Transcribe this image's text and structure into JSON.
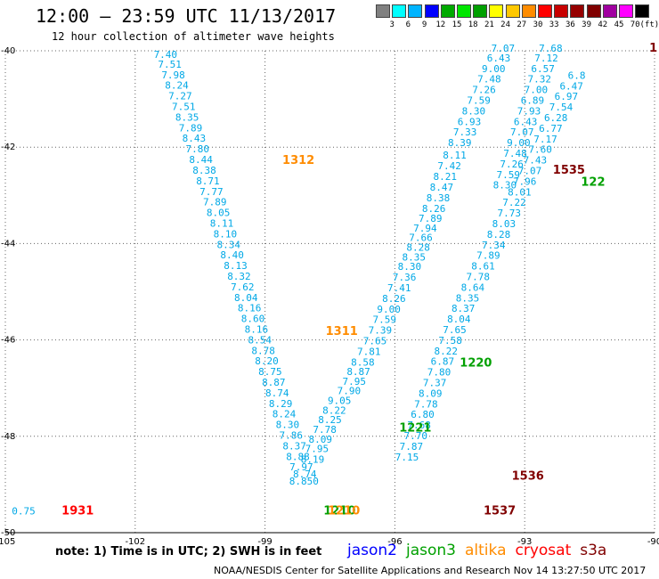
{
  "header": {
    "title": "12:00 – 23:59 UTC 11/13/2017",
    "subtitle": "12 hour collection of altimeter wave heights"
  },
  "legend": {
    "unit": "(ft)",
    "colors": [
      "#808080",
      "#00ffff",
      "#00b4ff",
      "#0000ff",
      "#00aa00",
      "#00e600",
      "#00a000",
      "#ffff00",
      "#ffc800",
      "#ff8c00",
      "#ff0000",
      "#c80000",
      "#960000",
      "#800000",
      "#a000a0",
      "#ff00ff",
      "#000000"
    ],
    "labels": [
      "3",
      "6",
      "9",
      "12",
      "15",
      "18",
      "21",
      "24",
      "27",
      "30",
      "33",
      "36",
      "39",
      "42",
      "45",
      "70"
    ]
  },
  "chart_data": {
    "type": "scatter",
    "xlim": [
      -105,
      -90
    ],
    "ylim": [
      -50,
      -40
    ],
    "x_ticks": [
      "-105",
      "-102",
      "-99",
      "-96",
      "-93",
      "-90"
    ],
    "y_ticks": [
      "-40",
      "-42",
      "-44",
      "-46",
      "-48",
      "-50"
    ],
    "tracks": [
      {
        "points": [
          {
            "lon": -101.3,
            "lat": -40.15,
            "v": "7.40"
          },
          {
            "lon": -101.2,
            "lat": -40.35,
            "v": "7.51"
          },
          {
            "lon": -101.12,
            "lat": -40.57,
            "v": "7.98"
          },
          {
            "lon": -101.04,
            "lat": -40.79,
            "v": "8.24"
          },
          {
            "lon": -100.96,
            "lat": -41.01,
            "v": "7.27"
          },
          {
            "lon": -100.88,
            "lat": -41.23,
            "v": "7.51"
          },
          {
            "lon": -100.8,
            "lat": -41.45,
            "v": "8.35"
          },
          {
            "lon": -100.72,
            "lat": -41.67,
            "v": "7.89"
          },
          {
            "lon": -100.64,
            "lat": -41.89,
            "v": "8.43"
          },
          {
            "lon": -100.56,
            "lat": -42.11,
            "v": "7.80"
          },
          {
            "lon": -100.48,
            "lat": -42.33,
            "v": "8.44"
          },
          {
            "lon": -100.4,
            "lat": -42.55,
            "v": "8.38"
          },
          {
            "lon": -100.32,
            "lat": -42.77,
            "v": "8.71"
          },
          {
            "lon": -100.24,
            "lat": -42.99,
            "v": "7.77"
          },
          {
            "lon": -100.16,
            "lat": -43.21,
            "v": "7.89"
          },
          {
            "lon": -100.08,
            "lat": -43.43,
            "v": "8.05"
          },
          {
            "lon": -100.0,
            "lat": -43.65,
            "v": "8.11"
          },
          {
            "lon": -99.92,
            "lat": -43.87,
            "v": "8.10"
          },
          {
            "lon": -99.84,
            "lat": -44.09,
            "v": "8.34"
          },
          {
            "lon": -99.76,
            "lat": -44.31,
            "v": "8.40"
          },
          {
            "lon": -99.68,
            "lat": -44.53,
            "v": "8.13"
          },
          {
            "lon": -99.6,
            "lat": -44.75,
            "v": "8.32"
          },
          {
            "lon": -99.52,
            "lat": -44.97,
            "v": "7.62"
          },
          {
            "lon": -99.44,
            "lat": -45.19,
            "v": "8.04"
          },
          {
            "lon": -99.36,
            "lat": -45.41,
            "v": "8.16"
          },
          {
            "lon": -99.28,
            "lat": -45.63,
            "v": "8.60"
          },
          {
            "lon": -99.2,
            "lat": -45.85,
            "v": "8.16"
          },
          {
            "lon": -99.12,
            "lat": -46.07,
            "v": "8.54"
          },
          {
            "lon": -99.04,
            "lat": -46.29,
            "v": "8.78"
          },
          {
            "lon": -98.96,
            "lat": -46.51,
            "v": "8.20"
          },
          {
            "lon": -98.88,
            "lat": -46.73,
            "v": "8.75"
          },
          {
            "lon": -98.8,
            "lat": -46.95,
            "v": "8.87"
          },
          {
            "lon": -98.72,
            "lat": -47.17,
            "v": "8.74"
          },
          {
            "lon": -98.64,
            "lat": -47.39,
            "v": "8.29"
          },
          {
            "lon": -98.56,
            "lat": -47.61,
            "v": "8.24"
          },
          {
            "lon": -98.48,
            "lat": -47.83,
            "v": "8.30"
          },
          {
            "lon": -98.4,
            "lat": -48.05,
            "v": "7.86"
          },
          {
            "lon": -98.32,
            "lat": -48.27,
            "v": "8.37"
          },
          {
            "lon": -98.24,
            "lat": -48.49,
            "v": "8.88"
          },
          {
            "lon": -98.16,
            "lat": -48.71,
            "v": "7.97"
          },
          {
            "lon": -98.08,
            "lat": -48.85,
            "v": "8.74"
          },
          {
            "lon": -98.1,
            "lat": -49.0,
            "v": "8.850"
          }
        ]
      },
      {
        "points": [
          {
            "lon": -97.9,
            "lat": -48.55,
            "v": "8.19"
          },
          {
            "lon": -97.8,
            "lat": -48.33,
            "v": "7.95"
          },
          {
            "lon": -97.72,
            "lat": -48.13,
            "v": "8.09"
          },
          {
            "lon": -97.62,
            "lat": -47.93,
            "v": "7.78"
          },
          {
            "lon": -97.5,
            "lat": -47.73,
            "v": "8.25"
          },
          {
            "lon": -97.4,
            "lat": -47.53,
            "v": "8.22"
          },
          {
            "lon": -97.28,
            "lat": -47.33,
            "v": "9.05"
          },
          {
            "lon": -97.06,
            "lat": -47.13,
            "v": "7.90"
          },
          {
            "lon": -96.94,
            "lat": -46.93,
            "v": "7.95"
          },
          {
            "lon": -96.84,
            "lat": -46.73,
            "v": "8.87"
          },
          {
            "lon": -96.74,
            "lat": -46.53,
            "v": "8.58"
          },
          {
            "lon": -96.6,
            "lat": -46.31,
            "v": "7.81"
          },
          {
            "lon": -96.46,
            "lat": -46.09,
            "v": "7.65"
          },
          {
            "lon": -96.34,
            "lat": -45.87,
            "v": "7.39"
          },
          {
            "lon": -96.24,
            "lat": -45.65,
            "v": "7.59"
          },
          {
            "lon": -96.14,
            "lat": -45.43,
            "v": "9.00"
          },
          {
            "lon": -96.02,
            "lat": -45.21,
            "v": "8.26"
          },
          {
            "lon": -95.9,
            "lat": -44.99,
            "v": "7.41"
          },
          {
            "lon": -95.78,
            "lat": -44.77,
            "v": "7.36"
          },
          {
            "lon": -95.66,
            "lat": -44.55,
            "v": "8.30"
          },
          {
            "lon": -95.56,
            "lat": -44.35,
            "v": "8.35"
          },
          {
            "lon": -95.46,
            "lat": -44.15,
            "v": "8.28"
          },
          {
            "lon": -95.4,
            "lat": -43.95,
            "v": "7.66"
          },
          {
            "lon": -95.3,
            "lat": -43.75,
            "v": "7.94"
          },
          {
            "lon": -95.18,
            "lat": -43.55,
            "v": "7.89"
          },
          {
            "lon": -95.1,
            "lat": -43.35,
            "v": "8.26"
          },
          {
            "lon": -95.0,
            "lat": -43.12,
            "v": "8.38"
          },
          {
            "lon": -94.92,
            "lat": -42.9,
            "v": "8.47"
          },
          {
            "lon": -94.84,
            "lat": -42.68,
            "v": "8.21"
          },
          {
            "lon": -94.74,
            "lat": -42.46,
            "v": "7.42"
          },
          {
            "lon": -94.62,
            "lat": -42.24,
            "v": "8.11"
          },
          {
            "lon": -94.5,
            "lat": -41.98,
            "v": "8.39"
          },
          {
            "lon": -94.38,
            "lat": -41.76,
            "v": "7.33"
          },
          {
            "lon": -94.28,
            "lat": -41.54,
            "v": "6.93"
          },
          {
            "lon": -94.18,
            "lat": -41.32,
            "v": "8.30"
          },
          {
            "lon": -94.06,
            "lat": -41.1,
            "v": "7.59"
          },
          {
            "lon": -93.94,
            "lat": -40.88,
            "v": "7.26"
          },
          {
            "lon": -93.82,
            "lat": -40.66,
            "v": "7.48"
          },
          {
            "lon": -93.72,
            "lat": -40.44,
            "v": "9.00"
          },
          {
            "lon": -93.6,
            "lat": -40.22,
            "v": "6.43"
          },
          {
            "lon": -93.5,
            "lat": -40.02,
            "v": "7.07"
          }
        ]
      },
      {
        "points": [
          {
            "lon": -95.72,
            "lat": -48.5,
            "v": "7.15"
          },
          {
            "lon": -95.62,
            "lat": -48.28,
            "v": "7.87"
          },
          {
            "lon": -95.52,
            "lat": -48.06,
            "v": "7.70"
          },
          {
            "lon": -95.44,
            "lat": -47.84,
            "v": "7.68"
          },
          {
            "lon": -95.36,
            "lat": -47.62,
            "v": "6.80"
          },
          {
            "lon": -95.28,
            "lat": -47.4,
            "v": "7.78"
          },
          {
            "lon": -95.18,
            "lat": -47.18,
            "v": "8.09"
          },
          {
            "lon": -95.08,
            "lat": -46.96,
            "v": "7.37"
          },
          {
            "lon": -94.98,
            "lat": -46.74,
            "v": "7.80"
          },
          {
            "lon": -94.9,
            "lat": -46.52,
            "v": "6.87"
          },
          {
            "lon": -94.82,
            "lat": -46.3,
            "v": "8.22"
          },
          {
            "lon": -94.72,
            "lat": -46.08,
            "v": "7.58"
          },
          {
            "lon": -94.62,
            "lat": -45.86,
            "v": "7.65"
          },
          {
            "lon": -94.52,
            "lat": -45.64,
            "v": "8.04"
          },
          {
            "lon": -94.42,
            "lat": -45.42,
            "v": "8.37"
          },
          {
            "lon": -94.32,
            "lat": -45.2,
            "v": "8.35"
          },
          {
            "lon": -94.2,
            "lat": -44.98,
            "v": "8.64"
          },
          {
            "lon": -94.08,
            "lat": -44.76,
            "v": "7.78"
          },
          {
            "lon": -93.96,
            "lat": -44.54,
            "v": "8.61"
          },
          {
            "lon": -93.84,
            "lat": -44.32,
            "v": "7.89"
          },
          {
            "lon": -93.72,
            "lat": -44.1,
            "v": "7.34"
          },
          {
            "lon": -93.6,
            "lat": -43.88,
            "v": "8.28"
          },
          {
            "lon": -93.48,
            "lat": -43.66,
            "v": "8.03"
          },
          {
            "lon": -93.36,
            "lat": -43.44,
            "v": "7.73"
          },
          {
            "lon": -93.24,
            "lat": -43.22,
            "v": "7.22"
          },
          {
            "lon": -93.12,
            "lat": -43.0,
            "v": "8.01"
          },
          {
            "lon": -93.0,
            "lat": -42.78,
            "v": "7.96"
          },
          {
            "lon": -92.88,
            "lat": -42.56,
            "v": "7.07"
          },
          {
            "lon": -92.76,
            "lat": -42.34,
            "v": "7.43"
          },
          {
            "lon": -92.64,
            "lat": -42.12,
            "v": "7.60"
          },
          {
            "lon": -92.52,
            "lat": -41.9,
            "v": "7.17"
          },
          {
            "lon": -92.4,
            "lat": -41.68,
            "v": "6.77"
          },
          {
            "lon": -92.28,
            "lat": -41.46,
            "v": "6.28"
          },
          {
            "lon": -92.16,
            "lat": -41.24,
            "v": "7.54"
          },
          {
            "lon": -92.04,
            "lat": -41.02,
            "v": "6.97"
          },
          {
            "lon": -91.92,
            "lat": -40.8,
            "v": "6.47"
          },
          {
            "lon": -91.8,
            "lat": -40.58,
            "v": "6.8"
          }
        ]
      },
      {
        "points": [
          {
            "lon": -92.4,
            "lat": -40.02,
            "v": "7.68"
          },
          {
            "lon": -92.5,
            "lat": -40.22,
            "v": "7.12"
          },
          {
            "lon": -92.58,
            "lat": -40.44,
            "v": "6.57"
          },
          {
            "lon": -92.66,
            "lat": -40.66,
            "v": "7.32"
          },
          {
            "lon": -92.74,
            "lat": -40.88,
            "v": "7.00"
          },
          {
            "lon": -92.82,
            "lat": -41.1,
            "v": "6.89"
          },
          {
            "lon": -92.9,
            "lat": -41.32,
            "v": "7.93"
          },
          {
            "lon": -92.98,
            "lat": -41.54,
            "v": "6.43"
          },
          {
            "lon": -93.06,
            "lat": -41.76,
            "v": "7.07"
          },
          {
            "lon": -93.14,
            "lat": -41.98,
            "v": "9.00"
          },
          {
            "lon": -93.22,
            "lat": -42.2,
            "v": "7.48"
          },
          {
            "lon": -93.3,
            "lat": -42.42,
            "v": "7.26"
          },
          {
            "lon": -93.38,
            "lat": -42.64,
            "v": "7.59"
          },
          {
            "lon": -93.46,
            "lat": -42.86,
            "v": "8.30"
          }
        ]
      }
    ],
    "time_tags": [
      {
        "lon": -98.6,
        "lat": -42.35,
        "t": "1312",
        "c": "#ff8c00"
      },
      {
        "lon": -97.6,
        "lat": -45.9,
        "t": "1311",
        "c": "#ff8c00"
      },
      {
        "lon": -94.5,
        "lat": -46.55,
        "t": "1220",
        "c": "#00a000"
      },
      {
        "lon": -95.9,
        "lat": -47.9,
        "t": "1221",
        "c": "#00a000"
      },
      {
        "lon": -93.95,
        "lat": -49.62,
        "t": "1537",
        "c": "#800000"
      },
      {
        "lon": -93.3,
        "lat": -48.9,
        "t": "1536",
        "c": "#800000"
      },
      {
        "lon": -92.35,
        "lat": -42.55,
        "t": "1535",
        "c": "#800000"
      },
      {
        "lon": -91.7,
        "lat": -42.8,
        "t": "122",
        "c": "#00a000"
      },
      {
        "lon": -97.65,
        "lat": -49.62,
        "t": "1210",
        "c": "#00a000"
      },
      {
        "lon": -97.55,
        "lat": -49.62,
        "t": "1210",
        "c": "#ff8c00"
      },
      {
        "lon": -103.7,
        "lat": -49.62,
        "t": "1931",
        "c": "#ff0000"
      },
      {
        "lon": -90.12,
        "lat": -40.02,
        "t": "1",
        "c": "#800000"
      }
    ],
    "side_values": [
      {
        "lon": -104.85,
        "lat": -49.62,
        "v": "0.75"
      }
    ]
  },
  "footer": {
    "note": "note: 1) Time is in UTC; 2) SWH is in feet",
    "satellites": [
      {
        "name": "jason2",
        "color": "#0000ff"
      },
      {
        "name": "jason3",
        "color": "#00a000"
      },
      {
        "name": "altika",
        "color": "#ff8c00"
      },
      {
        "name": "cryosat",
        "color": "#ff0000"
      },
      {
        "name": "s3a",
        "color": "#800000"
      }
    ],
    "credit": "NOAA/NESDIS Center for Satellite Applications and Research     Nov 14 13:27:50 UTC 2017"
  }
}
